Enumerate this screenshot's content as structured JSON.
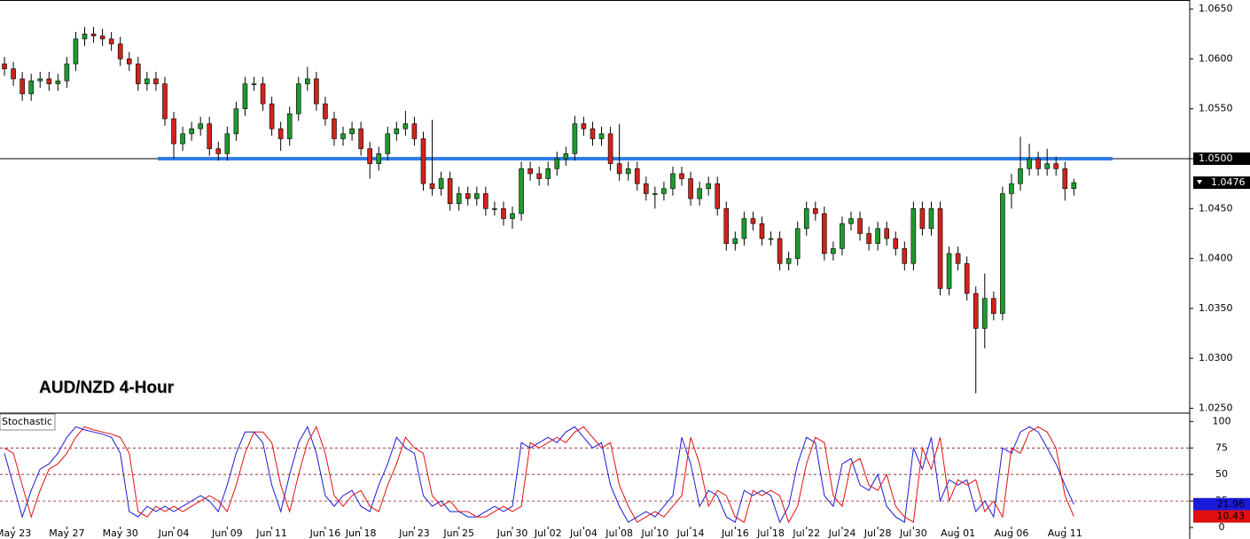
{
  "chart_data": [
    {
      "type": "candlestick",
      "title": "AUD/NZD 4-Hour",
      "categories": [
        null,
        "May 23",
        null,
        null,
        null,
        null,
        null,
        "May 27",
        null,
        null,
        null,
        null,
        null,
        "May 30",
        null,
        null,
        null,
        null,
        null,
        "Jun 04",
        null,
        null,
        null,
        null,
        null,
        "Jun 09",
        null,
        null,
        null,
        null,
        "Jun 11",
        null,
        null,
        null,
        null,
        null,
        "Jun 16",
        null,
        null,
        null,
        "Jun 18",
        null,
        null,
        null,
        null,
        null,
        "Jun 23",
        null,
        null,
        null,
        null,
        "Jun 25",
        null,
        null,
        null,
        null,
        null,
        "Jun 30",
        null,
        null,
        null,
        "Jul 02",
        null,
        null,
        null,
        "Jul 04",
        null,
        null,
        null,
        "Jul 08",
        null,
        null,
        null,
        "Jul 10",
        null,
        null,
        null,
        "Jul 14",
        null,
        null,
        null,
        null,
        "Jul 16",
        null,
        null,
        null,
        "Jul 18",
        null,
        null,
        null,
        "Jul 22",
        null,
        null,
        null,
        "Jul 24",
        null,
        null,
        null,
        "Jul 28",
        null,
        null,
        null,
        "Jul 30",
        null,
        null,
        null,
        null,
        "Aug 01",
        null,
        null,
        null,
        null,
        null,
        "Aug 06",
        null,
        null,
        null,
        null,
        null,
        "Aug 11",
        null
      ],
      "open": [
        1.0595,
        1.059,
        1.058,
        1.0565,
        1.0578,
        1.058,
        1.0575,
        1.0578,
        1.0595,
        1.062,
        1.0625,
        1.0623,
        1.062,
        1.0615,
        1.06,
        1.0595,
        1.0575,
        1.058,
        1.0575,
        1.054,
        1.0515,
        1.0525,
        1.053,
        1.0535,
        1.051,
        1.0505,
        1.0525,
        1.055,
        1.0575,
        1.0575,
        1.0555,
        1.053,
        1.052,
        1.0545,
        1.0575,
        1.058,
        1.0555,
        1.054,
        1.052,
        1.0525,
        1.053,
        1.051,
        1.0495,
        1.0505,
        1.0525,
        1.053,
        1.0535,
        1.052,
        1.0475,
        1.047,
        1.048,
        1.0455,
        1.0465,
        1.046,
        1.0465,
        1.045,
        1.045,
        1.044,
        1.0445,
        1.049,
        1.0485,
        1.048,
        1.049,
        1.05,
        1.0505,
        1.0535,
        1.053,
        1.052,
        1.0525,
        1.0495,
        1.0485,
        1.049,
        1.0475,
        1.0465,
        1.0465,
        1.047,
        1.0485,
        1.048,
        1.046,
        1.047,
        1.0475,
        1.045,
        1.0415,
        1.042,
        1.044,
        1.0435,
        1.042,
        1.042,
        1.0395,
        1.04,
        1.043,
        1.045,
        1.0445,
        1.0405,
        1.041,
        1.0435,
        1.044,
        1.0425,
        1.0415,
        1.043,
        1.042,
        1.041,
        1.0395,
        1.045,
        1.043,
        1.045,
        1.037,
        1.0405,
        1.0395,
        1.0365,
        1.033,
        1.036,
        1.0345,
        1.0465,
        1.0475,
        1.049,
        1.05,
        1.049,
        1.0495,
        1.049,
        1.047
      ],
      "high": [
        1.0602,
        1.0597,
        1.0587,
        1.0585,
        1.0587,
        1.0587,
        1.0585,
        1.0602,
        1.0627,
        1.0632,
        1.0632,
        1.063,
        1.0627,
        1.0622,
        1.0607,
        1.0602,
        1.0587,
        1.0587,
        1.0582,
        1.0547,
        1.0532,
        1.0537,
        1.0542,
        1.0542,
        1.0517,
        1.0532,
        1.0557,
        1.0582,
        1.0582,
        1.0582,
        1.0562,
        1.0537,
        1.0552,
        1.0582,
        1.0592,
        1.0587,
        1.0562,
        1.0547,
        1.0532,
        1.0537,
        1.0537,
        1.0517,
        1.0512,
        1.0532,
        1.0537,
        1.0548,
        1.0542,
        1.0527,
        1.0539,
        1.0487,
        1.0487,
        1.0472,
        1.0472,
        1.0472,
        1.0472,
        1.0457,
        1.0457,
        1.0452,
        1.0497,
        1.0497,
        1.0492,
        1.0497,
        1.0507,
        1.0512,
        1.0543,
        1.0542,
        1.0537,
        1.0532,
        1.0532,
        1.0535,
        1.0497,
        1.0497,
        1.0482,
        1.0472,
        1.0477,
        1.0492,
        1.0492,
        1.0487,
        1.0477,
        1.0482,
        1.0482,
        1.0457,
        1.0427,
        1.0447,
        1.0447,
        1.0442,
        1.0427,
        1.0427,
        1.0407,
        1.0437,
        1.0457,
        1.0457,
        1.0452,
        1.0417,
        1.0442,
        1.0447,
        1.0447,
        1.0432,
        1.0437,
        1.0437,
        1.0427,
        1.0417,
        1.0457,
        1.0457,
        1.0457,
        1.0457,
        1.0412,
        1.0412,
        1.0402,
        1.0372,
        1.0385,
        1.0367,
        1.0472,
        1.0485,
        1.0522,
        1.0515,
        1.0507,
        1.051,
        1.0502,
        1.0497,
        1.048
      ],
      "low": [
        1.0583,
        1.0573,
        1.0558,
        1.0558,
        1.0571,
        1.0568,
        1.0568,
        1.0571,
        1.0588,
        1.0613,
        1.0616,
        1.0613,
        1.0608,
        1.0593,
        1.0588,
        1.0568,
        1.0568,
        1.0568,
        1.0533,
        1.05,
        1.0508,
        1.0518,
        1.0523,
        1.0503,
        1.0498,
        1.0498,
        1.0518,
        1.0543,
        1.0568,
        1.0548,
        1.0523,
        1.0508,
        1.0513,
        1.0538,
        1.0568,
        1.0548,
        1.0533,
        1.0513,
        1.0513,
        1.0518,
        1.0503,
        1.048,
        1.0488,
        1.0498,
        1.0518,
        1.0523,
        1.0513,
        1.0468,
        1.0463,
        1.0463,
        1.0448,
        1.0448,
        1.0453,
        1.0453,
        1.0443,
        1.0443,
        1.0433,
        1.043,
        1.0438,
        1.0478,
        1.0473,
        1.0473,
        1.0483,
        1.0493,
        1.0498,
        1.0523,
        1.0513,
        1.0513,
        1.0488,
        1.0478,
        1.0478,
        1.0468,
        1.0458,
        1.045,
        1.0458,
        1.0463,
        1.0473,
        1.0453,
        1.0453,
        1.0463,
        1.0443,
        1.0408,
        1.0408,
        1.0413,
        1.0428,
        1.0413,
        1.0413,
        1.0388,
        1.0388,
        1.0393,
        1.0423,
        1.0438,
        1.0398,
        1.0398,
        1.0403,
        1.0428,
        1.0418,
        1.0408,
        1.0408,
        1.0413,
        1.0403,
        1.0388,
        1.0388,
        1.0423,
        1.0423,
        1.0363,
        1.0363,
        1.0388,
        1.0358,
        1.0265,
        1.031,
        1.0338,
        1.0338,
        1.045,
        1.0468,
        1.0483,
        1.0483,
        1.0483,
        1.0483,
        1.0458,
        1.0463
      ],
      "close": [
        1.059,
        1.058,
        1.0565,
        1.0578,
        1.058,
        1.0575,
        1.0578,
        1.0595,
        1.062,
        1.0625,
        1.0623,
        1.062,
        1.0615,
        1.06,
        1.0595,
        1.0575,
        1.058,
        1.0575,
        1.054,
        1.0515,
        1.0525,
        1.053,
        1.0535,
        1.051,
        1.0505,
        1.0525,
        1.055,
        1.0575,
        1.0575,
        1.0555,
        1.053,
        1.052,
        1.0545,
        1.0575,
        1.058,
        1.0555,
        1.054,
        1.052,
        1.0525,
        1.053,
        1.051,
        1.0495,
        1.0505,
        1.0525,
        1.053,
        1.0535,
        1.052,
        1.0475,
        1.047,
        1.048,
        1.0455,
        1.0465,
        1.046,
        1.0465,
        1.045,
        1.045,
        1.044,
        1.0445,
        1.049,
        1.0485,
        1.048,
        1.049,
        1.05,
        1.0505,
        1.0535,
        1.053,
        1.052,
        1.0525,
        1.0495,
        1.0485,
        1.049,
        1.0475,
        1.0465,
        1.0465,
        1.047,
        1.0485,
        1.048,
        1.046,
        1.047,
        1.0475,
        1.045,
        1.0415,
        1.042,
        1.044,
        1.0435,
        1.042,
        1.042,
        1.0395,
        1.04,
        1.043,
        1.045,
        1.0445,
        1.0405,
        1.041,
        1.0435,
        1.044,
        1.0425,
        1.0415,
        1.043,
        1.042,
        1.041,
        1.0395,
        1.045,
        1.043,
        1.045,
        1.037,
        1.0405,
        1.0395,
        1.0365,
        1.033,
        1.036,
        1.0345,
        1.0465,
        1.0475,
        1.049,
        1.05,
        1.049,
        1.0495,
        1.049,
        1.047,
        1.0476
      ],
      "up_color": "#1e9a2e",
      "down_color": "#d0231c",
      "ylim": [
        1.0246,
        1.0659
      ],
      "yticks": [
        {
          "value": 1.025,
          "label": "1.0250"
        },
        {
          "value": 1.03,
          "label": "1.0300"
        },
        {
          "value": 1.035,
          "label": "1.0350"
        },
        {
          "value": 1.04,
          "label": "1.0400"
        },
        {
          "value": 1.045,
          "label": "1.0450"
        },
        {
          "value": 1.05,
          "label": "1.0500"
        },
        {
          "value": 1.055,
          "label": "1.0550"
        },
        {
          "value": 1.06,
          "label": "1.0600"
        },
        {
          "value": 1.065,
          "label": "1.0650"
        }
      ],
      "level": {
        "value": 1.05,
        "label": "1.0500",
        "color": "#2f7fe8"
      },
      "last_price": {
        "value": 1.0476,
        "label": "1.0476"
      }
    },
    {
      "type": "line",
      "title": "Stochastic",
      "ylim": [
        -10,
        107
      ],
      "yticks": [
        0,
        25,
        50,
        75,
        100
      ],
      "series": [
        {
          "color": "#1a1adb",
          "end_label": "21.96",
          "values": [
            70,
            40,
            10,
            35,
            55,
            60,
            70,
            85,
            95,
            92,
            90,
            88,
            85,
            70,
            15,
            10,
            20,
            15,
            20,
            15,
            20,
            25,
            30,
            25,
            15,
            40,
            70,
            90,
            90,
            80,
            40,
            15,
            50,
            80,
            95,
            70,
            30,
            20,
            30,
            35,
            20,
            15,
            40,
            60,
            85,
            75,
            70,
            30,
            20,
            25,
            15,
            15,
            10,
            10,
            15,
            20,
            15,
            20,
            80,
            75,
            80,
            85,
            80,
            90,
            95,
            85,
            75,
            80,
            40,
            20,
            5,
            10,
            15,
            10,
            20,
            30,
            85,
            60,
            20,
            35,
            30,
            10,
            5,
            35,
            30,
            35,
            30,
            5,
            20,
            60,
            85,
            80,
            30,
            20,
            60,
            65,
            40,
            35,
            50,
            20,
            10,
            5,
            75,
            55,
            85,
            25,
            45,
            40,
            45,
            15,
            25,
            10,
            75,
            70,
            90,
            95,
            90,
            75,
            60,
            40,
            21.96
          ]
        },
        {
          "color": "#e01010",
          "end_label": "10.43",
          "values": [
            75,
            70,
            40,
            10,
            35,
            55,
            60,
            70,
            85,
            95,
            92,
            90,
            88,
            85,
            70,
            15,
            10,
            20,
            15,
            20,
            15,
            20,
            25,
            30,
            25,
            15,
            40,
            70,
            90,
            90,
            80,
            40,
            15,
            50,
            80,
            95,
            70,
            30,
            20,
            30,
            35,
            20,
            15,
            40,
            60,
            85,
            75,
            70,
            30,
            20,
            25,
            15,
            15,
            10,
            10,
            15,
            20,
            15,
            20,
            80,
            75,
            80,
            85,
            80,
            90,
            95,
            85,
            75,
            80,
            40,
            20,
            5,
            10,
            15,
            10,
            20,
            30,
            85,
            60,
            20,
            35,
            30,
            10,
            5,
            35,
            30,
            35,
            30,
            5,
            20,
            60,
            85,
            80,
            30,
            20,
            60,
            65,
            40,
            35,
            50,
            20,
            10,
            5,
            75,
            55,
            85,
            25,
            45,
            40,
            45,
            15,
            25,
            10,
            75,
            70,
            90,
            95,
            90,
            75,
            30,
            10.43
          ]
        }
      ]
    }
  ]
}
